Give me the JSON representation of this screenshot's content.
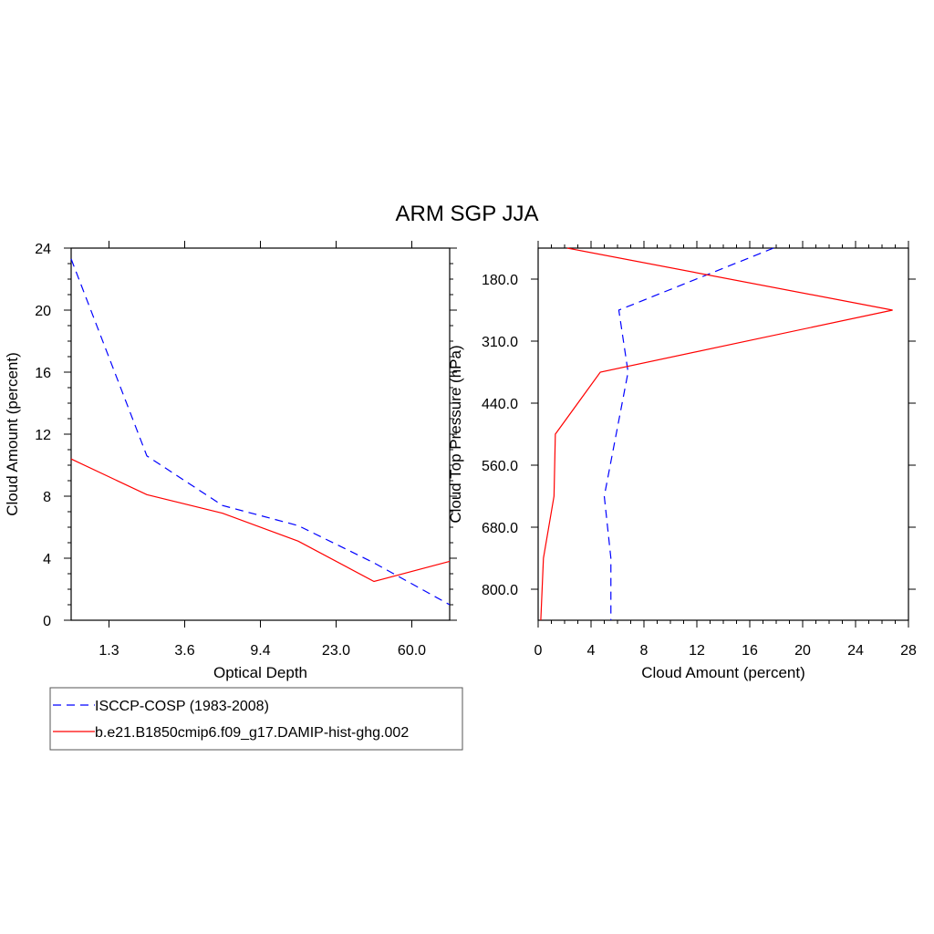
{
  "title": "ARM SGP JJA",
  "legend": {
    "placement": "bottom-left",
    "entries": [
      {
        "label": "ISCCP-COSP (1983-2008)",
        "color": "#0000ff",
        "dash": "dashed"
      },
      {
        "label": "b.e21.B1850cmip6.f09_g17.DAMIP-hist-ghg.002",
        "color": "#ff0000",
        "dash": "solid"
      }
    ]
  },
  "chart_data": [
    {
      "type": "line",
      "xlabel": "Optical Depth",
      "ylabel": "Cloud Amount (percent)",
      "ylim": [
        0,
        24
      ],
      "y_ticks": [
        "0",
        "4",
        "8",
        "12",
        "16",
        "20",
        "24"
      ],
      "x_ticks": [
        "1.3",
        "3.6",
        "9.4",
        "23.0",
        "60.0"
      ],
      "x_tick_positions": [
        1,
        3,
        5,
        7,
        9
      ],
      "xlim": [
        0,
        10
      ],
      "series": [
        {
          "name": "ISCCP-COSP (1983-2008)",
          "color": "#0000ff",
          "dash": "dashed",
          "x": [
            0,
            2,
            4,
            6,
            8,
            10
          ],
          "values": [
            23.3,
            10.6,
            7.4,
            6.1,
            3.7,
            1.0
          ]
        },
        {
          "name": "b.e21.B1850cmip6.f09_g17.DAMIP-hist-ghg.002",
          "color": "#ff0000",
          "dash": "solid",
          "x": [
            0,
            2,
            4,
            6,
            8,
            10
          ],
          "values": [
            10.4,
            8.1,
            6.9,
            5.1,
            2.5,
            3.8
          ]
        }
      ]
    },
    {
      "type": "line",
      "xlabel": "Cloud Amount (percent)",
      "ylabel": "Cloud Top Pressure (hPa)",
      "xlim": [
        0,
        28
      ],
      "x_ticks": [
        "0",
        "4",
        "8",
        "12",
        "16",
        "20",
        "24",
        "28"
      ],
      "y_ticks": [
        "180.0",
        "310.0",
        "440.0",
        "560.0",
        "680.0",
        "800.0"
      ],
      "y_tick_positions": [
        0.5,
        1.5,
        2.5,
        3.5,
        4.5,
        5.5
      ],
      "ylim": [
        0,
        6
      ],
      "series": [
        {
          "name": "ISCCP-COSP (1983-2008)",
          "color": "#0000ff",
          "dash": "dashed",
          "x": [
            17.8,
            6.1,
            6.8,
            5.0,
            5.5,
            5.5
          ],
          "y": [
            0,
            1,
            2,
            4,
            5,
            6
          ]
        },
        {
          "name": "b.e21.B1850cmip6.f09_g17.DAMIP-hist-ghg.002",
          "color": "#ff0000",
          "dash": "solid",
          "x": [
            2.2,
            26.8,
            4.7,
            1.3,
            1.2,
            0.4,
            0.2
          ],
          "y": [
            0,
            1,
            2,
            3,
            4,
            5,
            6
          ]
        }
      ]
    }
  ]
}
